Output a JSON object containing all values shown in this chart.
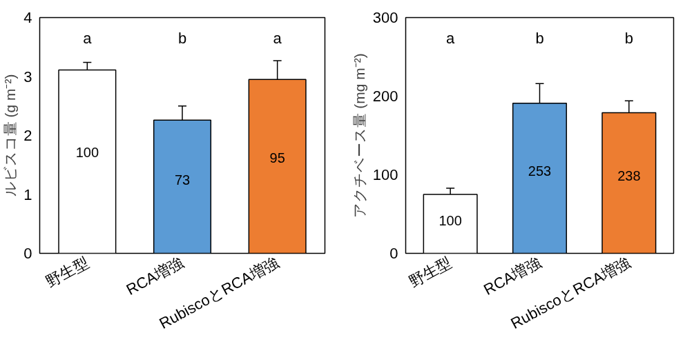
{
  "chart_data": [
    {
      "type": "bar",
      "categories": [
        "野生型",
        "RCA増強",
        "RubiscoとRCA増強"
      ],
      "values": [
        3.11,
        2.26,
        2.95
      ],
      "colors": [
        "#ffffff",
        "#5b9bd5",
        "#ed7d31"
      ],
      "errors": [
        0.13,
        0.24,
        0.32
      ],
      "ylabel": "ルビスコ量 (g m⁻²)",
      "ylim": [
        0,
        4
      ],
      "yticks": [
        0,
        1,
        2,
        3,
        4
      ],
      "grid": false,
      "annotations": [
        "a",
        "b",
        "a",
        "100",
        "73",
        "95"
      ]
    },
    {
      "type": "bar",
      "categories": [
        "野生型",
        "RCA増強",
        "RubiscoとRCA増強"
      ],
      "values": [
        75,
        191,
        179
      ],
      "colors": [
        "#ffffff",
        "#5b9bd5",
        "#ed7d31"
      ],
      "errors": [
        8,
        25,
        15
      ],
      "ylabel": "アクチベース量 (mg m⁻²)",
      "ylim": [
        0,
        300
      ],
      "yticks": [
        0,
        100,
        200,
        300
      ],
      "grid": false,
      "annotations": [
        "a",
        "b",
        "b",
        "100",
        "253",
        "238"
      ]
    }
  ]
}
